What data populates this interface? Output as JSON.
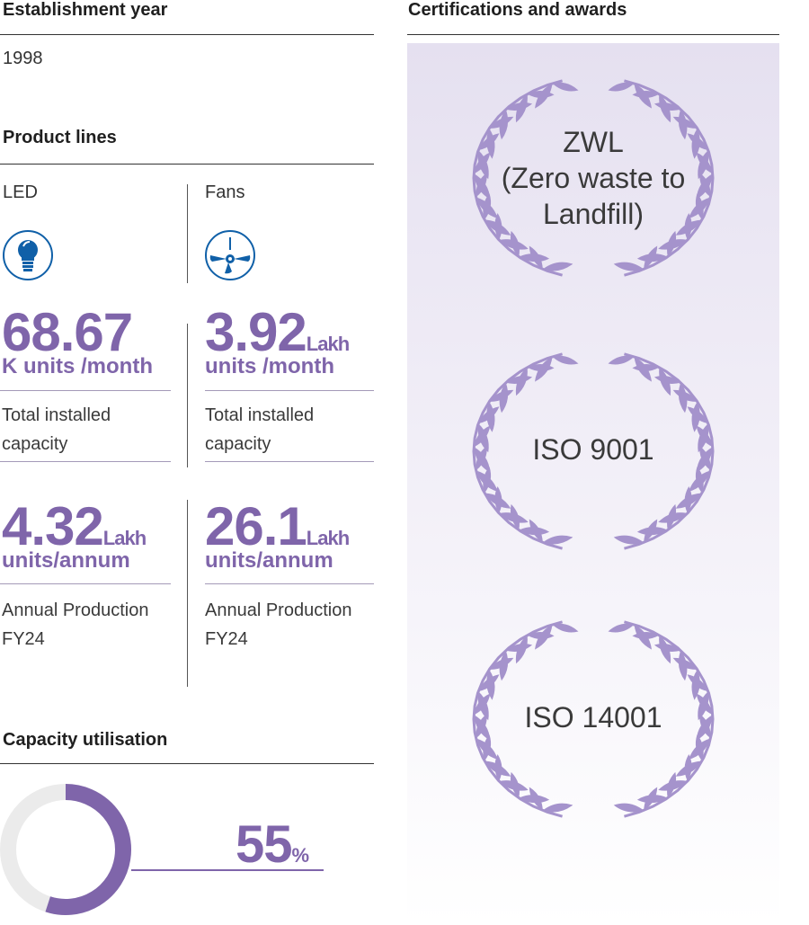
{
  "establishment": {
    "title": "Establishment year",
    "year": "1998"
  },
  "product_lines": {
    "title": "Product lines",
    "led": {
      "name": "LED",
      "icon": "led-bulb-icon",
      "capacity": {
        "value": "68.67",
        "unit_line": "K units /month",
        "label_1": "Total installed",
        "label_2": "capacity"
      },
      "production": {
        "value": "4.32",
        "unit_inline": "Lakh",
        "unit_line": "units/annum",
        "label_1": "Annual Production",
        "label_2": "FY24"
      }
    },
    "fans": {
      "name": "Fans",
      "icon": "ceiling-fan-icon",
      "capacity": {
        "value": "3.92",
        "unit_inline": "Lakh",
        "unit_line": "units /month",
        "label_1": "Total installed",
        "label_2": "capacity"
      },
      "production": {
        "value": "26.1",
        "unit_inline": "Lakh",
        "unit_line": "units/annum",
        "label_1": "Annual Production",
        "label_2": "FY24"
      }
    }
  },
  "capacity_utilisation": {
    "title": "Capacity utilisation",
    "value": "55",
    "unit": "%",
    "fraction": 0.55
  },
  "certifications": {
    "title": "Certifications and awards",
    "items": [
      {
        "lines": [
          "ZWL",
          "(Zero waste to",
          "Landfill)"
        ]
      },
      {
        "lines": [
          "ISO 9001"
        ]
      },
      {
        "lines": [
          "ISO 14001"
        ]
      }
    ]
  },
  "colors": {
    "accent": "#7f65aa",
    "icon_blue": "#1060a8",
    "donut_track": "#ebebeb",
    "wreath": "#a593cc"
  }
}
